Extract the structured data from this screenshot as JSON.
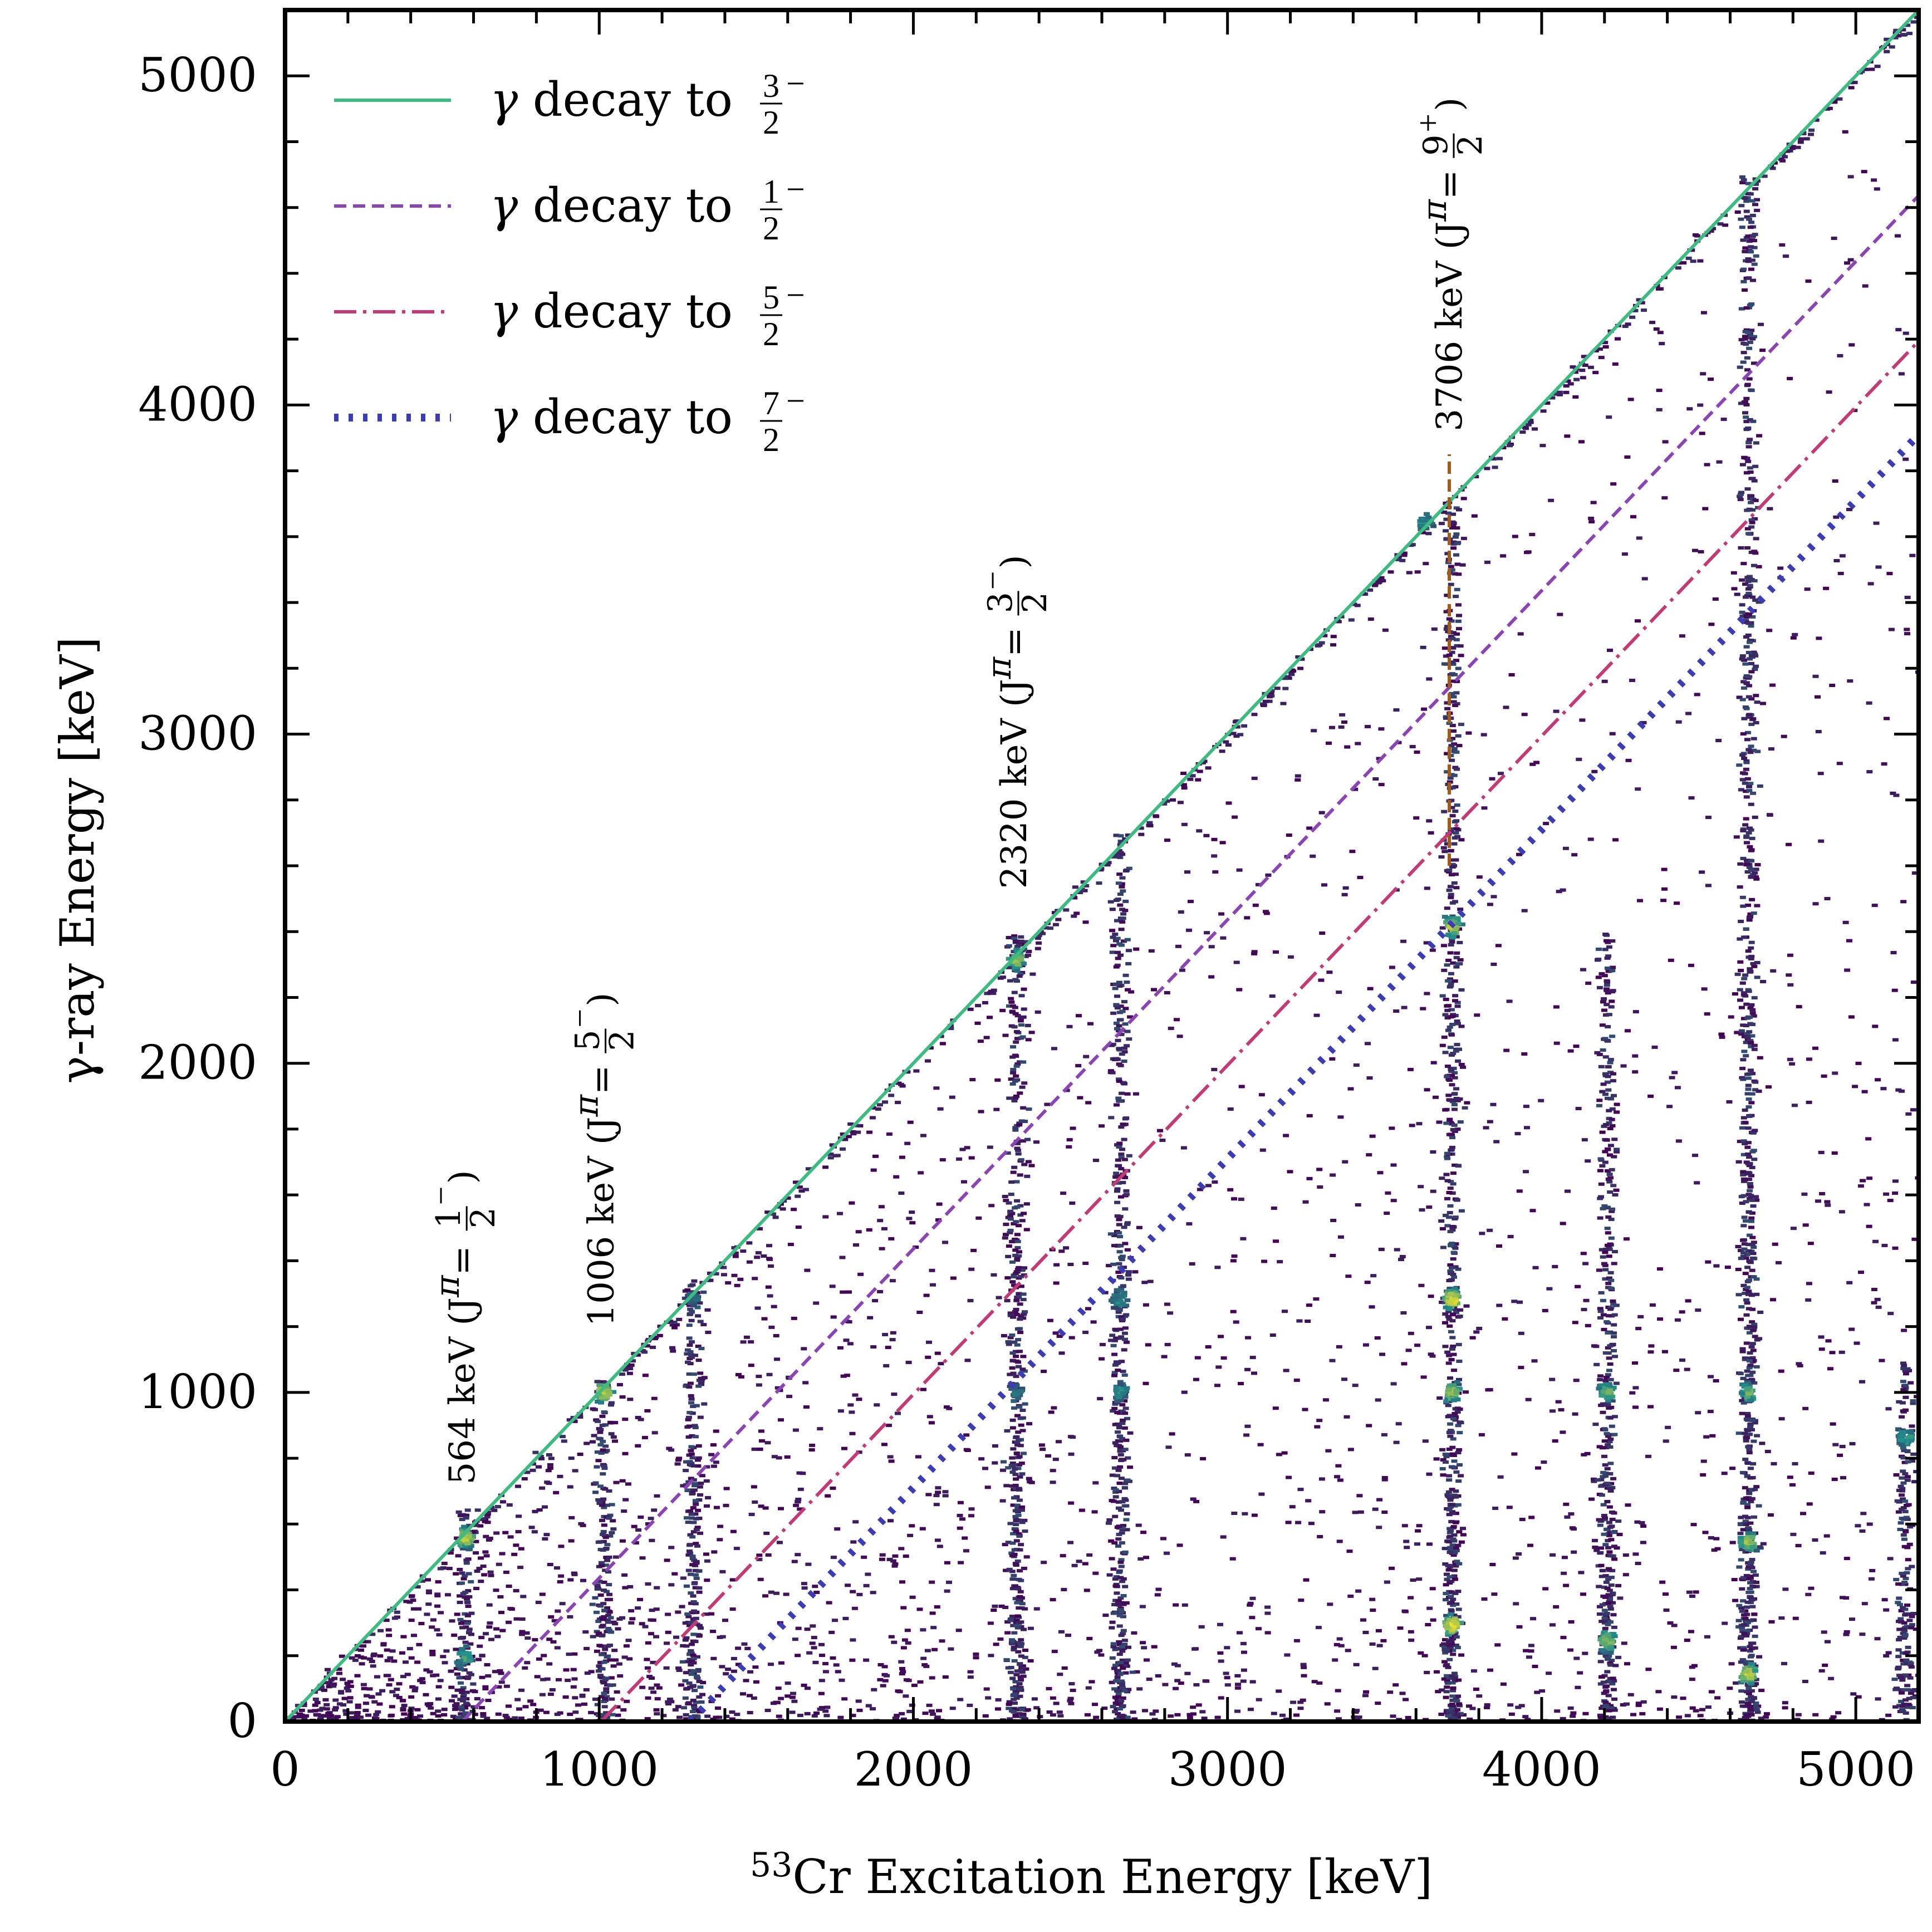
{
  "chart_data": {
    "type": "heatmap",
    "xlabel": "Cr Excitation Energy [keV]",
    "xlabel_superscript": "53",
    "ylabel": "γ-ray Energy [keV]",
    "xlim": [
      0,
      5200
    ],
    "ylim": [
      0,
      5200
    ],
    "x_ticks": [
      "0",
      "1000",
      "2000",
      "3000",
      "4000",
      "5000"
    ],
    "y_ticks": [
      "0",
      "1000",
      "2000",
      "3000",
      "4000",
      "5000"
    ],
    "x_tick_values": [
      0,
      1000,
      2000,
      3000,
      4000,
      5000
    ],
    "y_tick_values": [
      0,
      1000,
      2000,
      3000,
      4000,
      5000
    ],
    "legend_position": "top-left",
    "colors": {
      "to_3_2": "#3dbb80",
      "to_1_2": "#8a44b4",
      "to_5_2": "#c23b74",
      "to_7_2": "#3c3cb4",
      "state_marker": "#a05a1a",
      "heatmap_low": "#440154",
      "heatmap_mid": "#21918c",
      "heatmap_high": "#fde725"
    },
    "series": [
      {
        "name": "γ decay to 3/2−",
        "style": "solid",
        "final_state_energy": 0,
        "fraction": {
          "num": "3",
          "den": "2",
          "sign": "−"
        }
      },
      {
        "name": "γ decay to 1/2−",
        "style": "dashed",
        "final_state_energy": 564,
        "fraction": {
          "num": "1",
          "den": "2",
          "sign": "−"
        }
      },
      {
        "name": "γ decay to 5/2−",
        "style": "dashdot",
        "final_state_energy": 1006,
        "fraction": {
          "num": "5",
          "den": "2",
          "sign": "−"
        }
      },
      {
        "name": "γ decay to 7/2−",
        "style": "dotted",
        "final_state_energy": 1290,
        "fraction": {
          "num": "7",
          "den": "2",
          "sign": "−"
        }
      }
    ],
    "legend_prefix": "γ",
    "legend_text": "decay to",
    "annotations": [
      {
        "energy": "564 keV",
        "x": 564,
        "y_start": 720,
        "spin_num": "1",
        "spin_den": "2",
        "parity": "−"
      },
      {
        "energy": "1006 keV",
        "x": 1006,
        "y_start": 1200,
        "spin_num": "5",
        "spin_den": "2",
        "parity": "−"
      },
      {
        "energy": "2320 keV",
        "x": 2320,
        "y_start": 2530,
        "spin_num": "3",
        "spin_den": "2",
        "parity": "−"
      },
      {
        "energy": "3706 keV",
        "x": 3706,
        "y_start": 3920,
        "spin_num": "9",
        "spin_den": "2",
        "parity": "+"
      }
    ],
    "state_marker": {
      "x": 3706,
      "y_range": [
        2600,
        3850
      ]
    },
    "heatmap_clusters": [
      {
        "x": 564,
        "y": 564,
        "intensity": 0.9
      },
      {
        "x": 564,
        "y": 200,
        "intensity": 0.6
      },
      {
        "x": 1006,
        "y": 1006,
        "intensity": 0.9
      },
      {
        "x": 1290,
        "y": 1290,
        "intensity": 0.4
      },
      {
        "x": 2320,
        "y": 2320,
        "intensity": 0.8
      },
      {
        "x": 2320,
        "y": 1006,
        "intensity": 0.4
      },
      {
        "x": 2650,
        "y": 1290,
        "intensity": 0.5
      },
      {
        "x": 2650,
        "y": 1006,
        "intensity": 0.5
      },
      {
        "x": 3706,
        "y": 2420,
        "intensity": 0.9
      },
      {
        "x": 3706,
        "y": 1290,
        "intensity": 1.0
      },
      {
        "x": 3706,
        "y": 1006,
        "intensity": 0.8
      },
      {
        "x": 3706,
        "y": 300,
        "intensity": 1.0
      },
      {
        "x": 3620,
        "y": 3650,
        "intensity": 0.5
      },
      {
        "x": 4200,
        "y": 1006,
        "intensity": 0.7
      },
      {
        "x": 4200,
        "y": 250,
        "intensity": 0.8
      },
      {
        "x": 4650,
        "y": 1006,
        "intensity": 0.7
      },
      {
        "x": 4650,
        "y": 550,
        "intensity": 0.8
      },
      {
        "x": 4650,
        "y": 150,
        "intensity": 0.9
      },
      {
        "x": 5150,
        "y": 870,
        "intensity": 0.6
      }
    ],
    "heatmap_bands": [
      {
        "x": 564,
        "y_max": 650
      },
      {
        "x": 1006,
        "y_max": 1050
      },
      {
        "x": 1290,
        "y_max": 1350
      },
      {
        "x": 2320,
        "y_max": 2400
      },
      {
        "x": 2650,
        "y_max": 2700
      },
      {
        "x": 3706,
        "y_max": 3700
      },
      {
        "x": 4200,
        "y_max": 2400
      },
      {
        "x": 4650,
        "y_max": 4700
      },
      {
        "x": 5150,
        "y_max": 1100
      }
    ]
  }
}
